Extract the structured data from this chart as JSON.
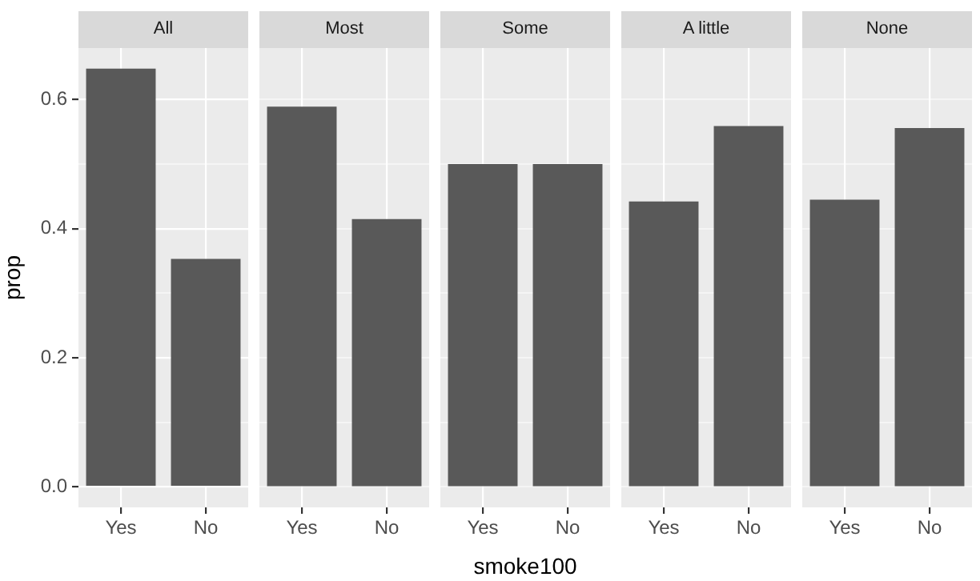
{
  "chart_data": [
    {
      "type": "bar",
      "title": "All",
      "ylabel": "prop",
      "categories": [
        "Yes",
        "No"
      ],
      "values": [
        0.648,
        0.353
      ],
      "color": "#595959",
      "ylim": [
        -0.032,
        0.68
      ],
      "yticks": [
        {
          "value": 0.0,
          "label": "0.0"
        },
        {
          "value": 0.1,
          "label": null
        },
        {
          "value": 0.2,
          "label": "0.2"
        },
        {
          "value": 0.3,
          "label": null
        },
        {
          "value": 0.4,
          "label": "0.4"
        },
        {
          "value": 0.5,
          "label": null
        },
        {
          "value": 0.6,
          "label": "0.6"
        }
      ],
      "grid": true
    },
    {
      "type": "bar",
      "title": "Most",
      "categories": [
        "Yes",
        "No"
      ],
      "values": [
        0.589,
        0.415
      ],
      "color": "#595959",
      "ylim": [
        -0.032,
        0.68
      ],
      "yticks": [
        {
          "value": 0.0,
          "label": null
        },
        {
          "value": 0.1,
          "label": null
        },
        {
          "value": 0.2,
          "label": null
        },
        {
          "value": 0.3,
          "label": null
        },
        {
          "value": 0.4,
          "label": null
        },
        {
          "value": 0.5,
          "label": null
        },
        {
          "value": 0.6,
          "label": null
        }
      ],
      "grid": true,
      "tick_labels": "x"
    },
    {
      "type": "bar",
      "title": "Some",
      "xlabel": "smoke100",
      "categories": [
        "Yes",
        "No"
      ],
      "values": [
        0.5,
        0.5
      ],
      "color": "#595959",
      "ylim": [
        -0.032,
        0.68
      ],
      "yticks": [
        {
          "value": 0.0,
          "label": null
        },
        {
          "value": 0.1,
          "label": null
        },
        {
          "value": 0.2,
          "label": null
        },
        {
          "value": 0.3,
          "label": null
        },
        {
          "value": 0.4,
          "label": null
        },
        {
          "value": 0.5,
          "label": null
        },
        {
          "value": 0.6,
          "label": null
        }
      ],
      "grid": true,
      "tick_labels": "x"
    },
    {
      "type": "bar",
      "title": "A little",
      "categories": [
        "Yes",
        "No"
      ],
      "values": [
        0.442,
        0.559
      ],
      "color": "#595959",
      "ylim": [
        -0.032,
        0.68
      ],
      "yticks": [
        {
          "value": 0.0,
          "label": null
        },
        {
          "value": 0.1,
          "label": null
        },
        {
          "value": 0.2,
          "label": null
        },
        {
          "value": 0.3,
          "label": null
        },
        {
          "value": 0.4,
          "label": null
        },
        {
          "value": 0.5,
          "label": null
        },
        {
          "value": 0.6,
          "label": null
        }
      ],
      "grid": true,
      "tick_labels": "x"
    },
    {
      "type": "bar",
      "title": "None",
      "categories": [
        "Yes",
        "No"
      ],
      "values": [
        0.445,
        0.556
      ],
      "color": "#595959",
      "ylim": [
        -0.032,
        0.68
      ],
      "yticks": [
        {
          "value": 0.0,
          "label": null
        },
        {
          "value": 0.1,
          "label": null
        },
        {
          "value": 0.2,
          "label": null
        },
        {
          "value": 0.3,
          "label": null
        },
        {
          "value": 0.4,
          "label": null
        },
        {
          "value": 0.5,
          "label": null
        },
        {
          "value": 0.6,
          "label": null
        }
      ],
      "grid": true,
      "tick_labels": "x"
    }
  ]
}
